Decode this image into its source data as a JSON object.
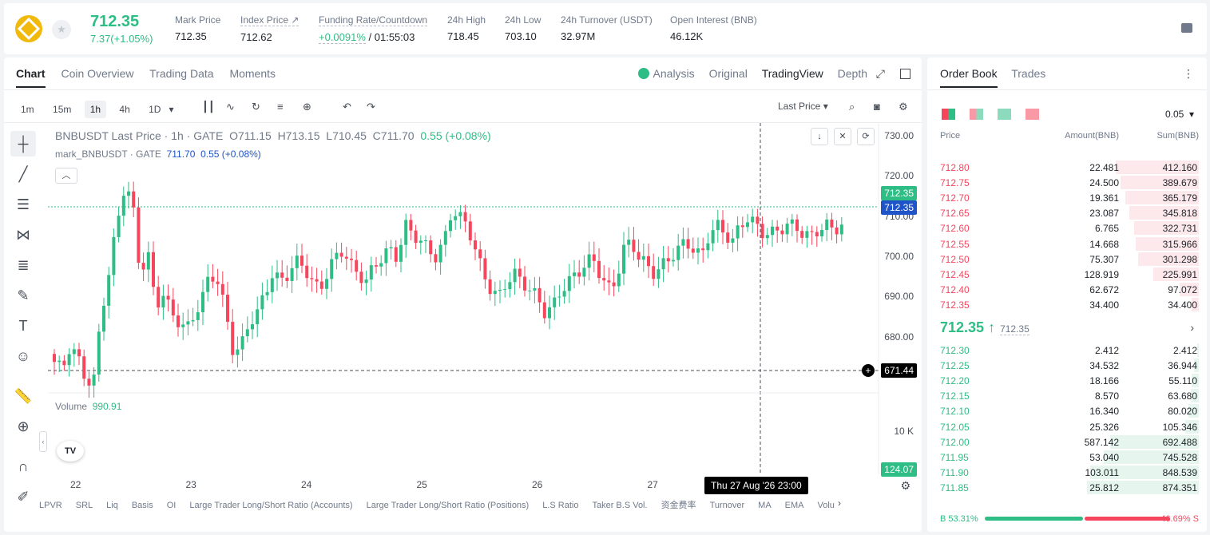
{
  "ticker": {
    "last_price": "712.35",
    "change": "7.37(+1.05%)"
  },
  "stats": [
    {
      "label": "Mark Price",
      "value": "712.35"
    },
    {
      "label": "Index Price ↗",
      "value": "712.62"
    },
    {
      "label": "Funding Rate/Countdown",
      "value": "+0.0091%",
      "value2": " / 01:55:03"
    },
    {
      "label": "24h High",
      "value": "718.45"
    },
    {
      "label": "24h Low",
      "value": "703.10"
    },
    {
      "label": "24h Turnover (USDT)",
      "value": "32.97M"
    },
    {
      "label": "Open Interest (BNB)",
      "value": "46.12K"
    }
  ],
  "chart_tabs": [
    "Chart",
    "Coin Overview",
    "Trading Data",
    "Moments"
  ],
  "view_tabs": [
    "Analysis",
    "Original",
    "TradingView",
    "Depth"
  ],
  "intervals": [
    "1m",
    "15m",
    "1h",
    "4h",
    "1D"
  ],
  "last_price_select": "Last Price",
  "legend": {
    "symbol": "BNBUSDT Last Price · 1h · GATE",
    "o": "O711.15",
    "h": "H713.15",
    "l": "L710.45",
    "c": "C711.70",
    "chg": "0.55 (+0.08%)",
    "mark": "mark_BNBUSDT · GATE",
    "mark_v": "711.70",
    "mark_chg": "0.55 (+0.08%)"
  },
  "volume": {
    "label": "Volume",
    "value": "990.91",
    "last": "124.07",
    "axis": "10 K"
  },
  "yaxis": [
    "730.00",
    "720.00",
    "710.00",
    "700.00",
    "690.00",
    "680.00"
  ],
  "price_tags": {
    "last": "712.35",
    "mark": "712.35",
    "cursor": "671.44"
  },
  "xaxis": [
    "22",
    "23",
    "24",
    "25",
    "26",
    "27"
  ],
  "crosshair_date": "Thu 27 Aug '26   23:00",
  "indicators": [
    "LPVR",
    "SRL",
    "Liq",
    "Basis",
    "OI",
    "Large Trader Long/Short Ratio (Accounts)",
    "Large Trader Long/Short Ratio (Positions)",
    "L.S Ratio",
    "Taker B.S Vol.",
    "资金费率",
    "Turnover",
    "MA",
    "EMA",
    "Volu"
  ],
  "orderbook": {
    "tabs": [
      "Order Book",
      "Trades"
    ],
    "tick": "0.05",
    "headers": [
      "Price",
      "Amount(BNB)",
      "Sum(BNB)"
    ],
    "asks": [
      [
        "712.80",
        "22.481",
        "412.160"
      ],
      [
        "712.75",
        "24.500",
        "389.679"
      ],
      [
        "712.70",
        "19.361",
        "365.179"
      ],
      [
        "712.65",
        "23.087",
        "345.818"
      ],
      [
        "712.60",
        "6.765",
        "322.731"
      ],
      [
        "712.55",
        "14.668",
        "315.966"
      ],
      [
        "712.50",
        "75.307",
        "301.298"
      ],
      [
        "712.45",
        "128.919",
        "225.991"
      ],
      [
        "712.40",
        "62.672",
        "97.072"
      ],
      [
        "712.35",
        "34.400",
        "34.400"
      ]
    ],
    "last": "712.35",
    "mark": "712.35",
    "bids": [
      [
        "712.30",
        "2.412",
        "2.412"
      ],
      [
        "712.25",
        "34.532",
        "36.944"
      ],
      [
        "712.20",
        "18.166",
        "55.110"
      ],
      [
        "712.15",
        "8.570",
        "63.680"
      ],
      [
        "712.10",
        "16.340",
        "80.020"
      ],
      [
        "712.05",
        "25.326",
        "105.346"
      ],
      [
        "712.00",
        "587.142",
        "692.488"
      ],
      [
        "711.95",
        "53.040",
        "745.528"
      ],
      [
        "711.90",
        "103.011",
        "848.539"
      ],
      [
        "711.85",
        "25.812",
        "874.351"
      ]
    ],
    "buy_ratio": "B 53.31%",
    "sell_ratio": "46.69% S",
    "buy_pct": 53.31
  },
  "colors": {
    "up": "#2ebd85",
    "down": "#f6465d",
    "mark": "#1f54c9"
  }
}
